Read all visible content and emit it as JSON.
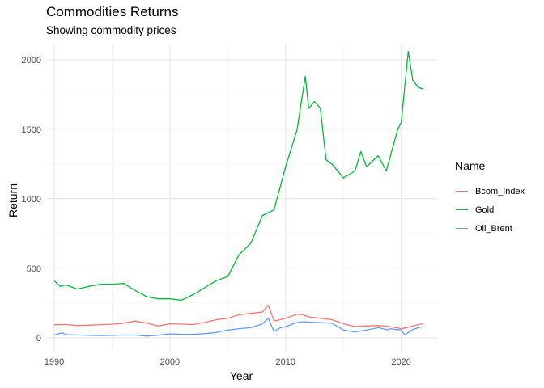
{
  "chart_data": {
    "type": "line",
    "title": "Commodities Returns",
    "subtitle": "Showing commodity prices",
    "xlabel": "Year",
    "ylabel": "Return",
    "xlim": [
      1989.3,
      2023.1
    ],
    "ylim": [
      -100,
      2110
    ],
    "x_ticks": [
      1990,
      2000,
      2010,
      2020
    ],
    "x_tick_labels": [
      "1990",
      "2000",
      "2010",
      "2020"
    ],
    "y_ticks": [
      0,
      500,
      1000,
      1500,
      2000
    ],
    "y_tick_labels": [
      "0",
      "500",
      "1000",
      "1500",
      "2000"
    ],
    "grid": true,
    "legend_position": "right",
    "legend_title": "Name",
    "series": [
      {
        "name": "Bcom_Index",
        "color": "#F8766D",
        "points": [
          [
            1990.0,
            93
          ],
          [
            1991.0,
            95
          ],
          [
            1992.0,
            88
          ],
          [
            1993.0,
            90
          ],
          [
            1994.0,
            94
          ],
          [
            1995.0,
            97
          ],
          [
            1996.0,
            105
          ],
          [
            1997.0,
            120
          ],
          [
            1998.0,
            105
          ],
          [
            1999.0,
            85
          ],
          [
            2000.0,
            100
          ],
          [
            2001.0,
            98
          ],
          [
            2002.0,
            95
          ],
          [
            2003.0,
            110
          ],
          [
            2004.0,
            130
          ],
          [
            2005.0,
            140
          ],
          [
            2006.0,
            165
          ],
          [
            2007.0,
            175
          ],
          [
            2008.0,
            185
          ],
          [
            2008.5,
            235
          ],
          [
            2009.0,
            120
          ],
          [
            2009.5,
            130
          ],
          [
            2010.0,
            140
          ],
          [
            2011.0,
            170
          ],
          [
            2011.5,
            165
          ],
          [
            2012.0,
            150
          ],
          [
            2013.0,
            140
          ],
          [
            2014.0,
            130
          ],
          [
            2015.0,
            100
          ],
          [
            2016.0,
            80
          ],
          [
            2017.0,
            85
          ],
          [
            2018.0,
            88
          ],
          [
            2019.0,
            80
          ],
          [
            2020.0,
            65
          ],
          [
            2020.5,
            72
          ],
          [
            2021.0,
            85
          ],
          [
            2021.5,
            95
          ],
          [
            2021.9,
            100
          ]
        ]
      },
      {
        "name": "Gold",
        "color": "#00BA38",
        "points": [
          [
            1990.0,
            410
          ],
          [
            1990.5,
            370
          ],
          [
            1991.0,
            380
          ],
          [
            1992.0,
            350
          ],
          [
            1993.0,
            370
          ],
          [
            1994.0,
            385
          ],
          [
            1995.0,
            385
          ],
          [
            1996.0,
            390
          ],
          [
            1997.0,
            340
          ],
          [
            1998.0,
            295
          ],
          [
            1999.0,
            280
          ],
          [
            2000.0,
            280
          ],
          [
            2001.0,
            270
          ],
          [
            2002.0,
            310
          ],
          [
            2003.0,
            360
          ],
          [
            2004.0,
            410
          ],
          [
            2005.0,
            440
          ],
          [
            2006.0,
            600
          ],
          [
            2007.0,
            680
          ],
          [
            2008.0,
            880
          ],
          [
            2008.5,
            900
          ],
          [
            2009.0,
            920
          ],
          [
            2010.0,
            1230
          ],
          [
            2011.0,
            1500
          ],
          [
            2011.7,
            1880
          ],
          [
            2012.0,
            1650
          ],
          [
            2012.5,
            1700
          ],
          [
            2013.0,
            1650
          ],
          [
            2013.5,
            1280
          ],
          [
            2014.0,
            1250
          ],
          [
            2015.0,
            1150
          ],
          [
            2016.0,
            1200
          ],
          [
            2016.5,
            1340
          ],
          [
            2017.0,
            1230
          ],
          [
            2018.0,
            1310
          ],
          [
            2018.7,
            1200
          ],
          [
            2019.0,
            1290
          ],
          [
            2019.7,
            1500
          ],
          [
            2020.0,
            1550
          ],
          [
            2020.6,
            2060
          ],
          [
            2021.0,
            1850
          ],
          [
            2021.5,
            1800
          ],
          [
            2021.9,
            1790
          ]
        ]
      },
      {
        "name": "Oil_Brent",
        "color": "#619CFF",
        "points": [
          [
            1990.0,
            20
          ],
          [
            1990.7,
            35
          ],
          [
            1991.0,
            22
          ],
          [
            1992.0,
            20
          ],
          [
            1993.0,
            17
          ],
          [
            1994.0,
            16
          ],
          [
            1995.0,
            17
          ],
          [
            1996.0,
            20
          ],
          [
            1997.0,
            19
          ],
          [
            1998.0,
            12
          ],
          [
            1999.0,
            18
          ],
          [
            2000.0,
            28
          ],
          [
            2001.0,
            24
          ],
          [
            2002.0,
            25
          ],
          [
            2003.0,
            29
          ],
          [
            2004.0,
            38
          ],
          [
            2005.0,
            55
          ],
          [
            2006.0,
            65
          ],
          [
            2007.0,
            72
          ],
          [
            2008.0,
            100
          ],
          [
            2008.5,
            140
          ],
          [
            2009.0,
            45
          ],
          [
            2009.5,
            70
          ],
          [
            2010.0,
            80
          ],
          [
            2011.0,
            110
          ],
          [
            2011.5,
            115
          ],
          [
            2012.0,
            112
          ],
          [
            2013.0,
            108
          ],
          [
            2014.0,
            105
          ],
          [
            2015.0,
            55
          ],
          [
            2016.0,
            42
          ],
          [
            2017.0,
            55
          ],
          [
            2018.0,
            72
          ],
          [
            2018.9,
            55
          ],
          [
            2019.0,
            65
          ],
          [
            2020.0,
            55
          ],
          [
            2020.3,
            20
          ],
          [
            2021.0,
            60
          ],
          [
            2021.5,
            72
          ],
          [
            2021.9,
            80
          ]
        ]
      }
    ]
  }
}
